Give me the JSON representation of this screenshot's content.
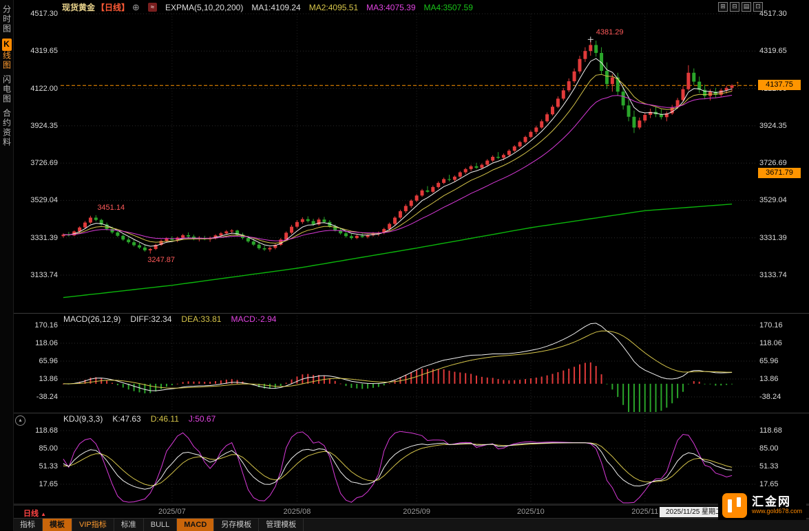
{
  "header": {
    "symbol": "现货黄金",
    "period_tag": "【日线】",
    "add_icon": "⊕",
    "menu_icon": "≈",
    "indicator": "EXPMA(5,10,20,200)",
    "ma1": "MA1:4109.24",
    "ma2": "MA2:4095.51",
    "ma3": "MA3:4075.39",
    "ma4": "MA4:3507.59"
  },
  "window_icons": [
    {
      "name": "multi-chart-layout-icon",
      "glyph": "⊞"
    },
    {
      "name": "split-horizontal-icon",
      "glyph": "⊟"
    },
    {
      "name": "list-view-icon",
      "glyph": "▤"
    },
    {
      "name": "new-window-icon",
      "glyph": "⊡"
    }
  ],
  "sidebar": {
    "items": [
      {
        "label": "分时图",
        "active": false
      },
      {
        "label": "K线图",
        "active": true
      },
      {
        "label": "闪电图",
        "active": false
      },
      {
        "label": "合约资料",
        "active": false
      }
    ]
  },
  "macd_header": {
    "title": "MACD(26,12,9)",
    "diff": "DIFF:32.34",
    "dea": "DEA:33.81",
    "macd": "MACD:-2.94"
  },
  "kdj_header": {
    "title": "KDJ(9,3,3)",
    "k": "K:47.63",
    "d": "D:46.11",
    "j": "J:50.67"
  },
  "timeline": {
    "period": "日线",
    "period_arrow": "▲",
    "date_box": "2025/11/25 星期二"
  },
  "tabs": [
    {
      "label": "指标",
      "style": "plain"
    },
    {
      "label": "模板",
      "style": "hl"
    },
    {
      "label": "VIP指标",
      "style": "orange"
    },
    {
      "label": "标准",
      "style": "plain"
    },
    {
      "label": "BULL",
      "style": "plain"
    },
    {
      "label": "MACD",
      "style": "hl"
    },
    {
      "label": "另存模板",
      "style": "plain"
    },
    {
      "label": "管理模板",
      "style": "plain"
    }
  ],
  "logo": {
    "name": "汇金网",
    "url": "www.gold678.com"
  },
  "icons": {
    "collapse": "▴",
    "price_arrow": "↑"
  },
  "chart_data": {
    "type": "candlestick",
    "title": "现货黄金 日线",
    "y_ticks": [
      4517.3,
      4319.65,
      4122.0,
      3924.35,
      3726.69,
      3529.04,
      3331.39,
      3133.74
    ],
    "x_labels": [
      {
        "label": "2025/07",
        "index": 20
      },
      {
        "label": "2025/08",
        "index": 43
      },
      {
        "label": "2025/09",
        "index": 65
      },
      {
        "label": "2025/10",
        "index": 86
      },
      {
        "label": "2025/11",
        "index": 107
      }
    ],
    "last_price": 4137.75,
    "ref_price": 3671.79,
    "peak_label": {
      "value": 4381.29,
      "index": 97
    },
    "swing_high": {
      "value": 3451.14,
      "index": 6
    },
    "swing_low": {
      "value": 3247.87,
      "index": 16
    },
    "ema_periods": [
      5,
      10,
      20
    ],
    "ema200_waypoints": [
      [
        0,
        3015
      ],
      [
        20,
        3080
      ],
      [
        43,
        3170
      ],
      [
        65,
        3277
      ],
      [
        86,
        3385
      ],
      [
        107,
        3475
      ],
      [
        122,
        3507.59
      ]
    ],
    "macd_panel": {
      "params": [
        26,
        12,
        9
      ],
      "ticks": [
        170.16,
        118.06,
        65.96,
        13.86,
        -38.24
      ],
      "last": {
        "diff": 32.34,
        "dea": 33.81,
        "macd": -2.94
      }
    },
    "kdj_panel": {
      "params": [
        9,
        3,
        3
      ],
      "ticks": [
        118.68,
        85.0,
        51.33,
        17.65
      ],
      "last": {
        "k": 47.63,
        "d": 46.11,
        "j": 50.67
      }
    },
    "colors": {
      "up": "#e13a3a",
      "down": "#2aa52a",
      "ma1": "#f2f2f2",
      "ma2": "#d6c54a",
      "ma3": "#d93ad9",
      "ma4": "#0bb50b",
      "accent": "#ff9500",
      "grid": "#2c2c2c"
    },
    "candles": [
      [
        3340,
        3355,
        3332,
        3348
      ],
      [
        3348,
        3362,
        3338,
        3344
      ],
      [
        3344,
        3370,
        3340,
        3365
      ],
      [
        3365,
        3392,
        3358,
        3386
      ],
      [
        3386,
        3420,
        3380,
        3412
      ],
      [
        3412,
        3448,
        3405,
        3438
      ],
      [
        3438,
        3451.14,
        3418,
        3426
      ],
      [
        3426,
        3432,
        3395,
        3402
      ],
      [
        3402,
        3412,
        3370,
        3378
      ],
      [
        3378,
        3390,
        3352,
        3360
      ],
      [
        3360,
        3372,
        3335,
        3342
      ],
      [
        3342,
        3350,
        3315,
        3322
      ],
      [
        3322,
        3335,
        3300,
        3308
      ],
      [
        3308,
        3320,
        3285,
        3292
      ],
      [
        3292,
        3305,
        3272,
        3280
      ],
      [
        3280,
        3295,
        3258,
        3265
      ],
      [
        3265,
        3278,
        3247.87,
        3272
      ],
      [
        3272,
        3300,
        3266,
        3294
      ],
      [
        3294,
        3322,
        3288,
        3315
      ],
      [
        3315,
        3335,
        3305,
        3328
      ],
      [
        3328,
        3340,
        3312,
        3320
      ],
      [
        3320,
        3338,
        3308,
        3332
      ],
      [
        3332,
        3352,
        3325,
        3345
      ],
      [
        3345,
        3360,
        3330,
        3338
      ],
      [
        3338,
        3348,
        3318,
        3325
      ],
      [
        3325,
        3340,
        3312,
        3330
      ],
      [
        3330,
        3342,
        3318,
        3324
      ],
      [
        3324,
        3338,
        3310,
        3331
      ],
      [
        3331,
        3350,
        3322,
        3344
      ],
      [
        3344,
        3362,
        3336,
        3355
      ],
      [
        3355,
        3372,
        3348,
        3365
      ],
      [
        3365,
        3377,
        3352,
        3370
      ],
      [
        3370,
        3374,
        3340,
        3348
      ],
      [
        3348,
        3358,
        3322,
        3330
      ],
      [
        3330,
        3342,
        3305,
        3312
      ],
      [
        3312,
        3325,
        3288,
        3295
      ],
      [
        3295,
        3310,
        3268,
        3276
      ],
      [
        3276,
        3290,
        3262,
        3270
      ],
      [
        3270,
        3285,
        3258,
        3278
      ],
      [
        3278,
        3300,
        3270,
        3294
      ],
      [
        3294,
        3330,
        3288,
        3322
      ],
      [
        3322,
        3365,
        3315,
        3358
      ],
      [
        3358,
        3400,
        3350,
        3390
      ],
      [
        3390,
        3425,
        3382,
        3415
      ],
      [
        3415,
        3440,
        3405,
        3430
      ],
      [
        3430,
        3445,
        3412,
        3420
      ],
      [
        3420,
        3432,
        3395,
        3402
      ],
      [
        3402,
        3438,
        3396,
        3428
      ],
      [
        3428,
        3442,
        3408,
        3415
      ],
      [
        3415,
        3425,
        3385,
        3392
      ],
      [
        3392,
        3402,
        3365,
        3372
      ],
      [
        3372,
        3385,
        3348,
        3355
      ],
      [
        3355,
        3368,
        3332,
        3340
      ],
      [
        3340,
        3352,
        3322,
        3330
      ],
      [
        3330,
        3348,
        3324,
        3342
      ],
      [
        3342,
        3355,
        3330,
        3336
      ],
      [
        3336,
        3350,
        3328,
        3345
      ],
      [
        3345,
        3362,
        3338,
        3352
      ],
      [
        3352,
        3365,
        3340,
        3358
      ],
      [
        3358,
        3385,
        3350,
        3378
      ],
      [
        3378,
        3412,
        3370,
        3405
      ],
      [
        3405,
        3445,
        3398,
        3438
      ],
      [
        3438,
        3480,
        3430,
        3472
      ],
      [
        3472,
        3510,
        3462,
        3500
      ],
      [
        3500,
        3535,
        3490,
        3528
      ],
      [
        3528,
        3562,
        3520,
        3555
      ],
      [
        3555,
        3590,
        3548,
        3582
      ],
      [
        3582,
        3605,
        3570,
        3575
      ],
      [
        3575,
        3608,
        3568,
        3600
      ],
      [
        3600,
        3630,
        3592,
        3622
      ],
      [
        3622,
        3650,
        3615,
        3642
      ],
      [
        3642,
        3665,
        3630,
        3638
      ],
      [
        3638,
        3662,
        3628,
        3655
      ],
      [
        3655,
        3685,
        3648,
        3678
      ],
      [
        3678,
        3702,
        3668,
        3695
      ],
      [
        3695,
        3718,
        3685,
        3710
      ],
      [
        3710,
        3728,
        3695,
        3702
      ],
      [
        3702,
        3725,
        3692,
        3718
      ],
      [
        3718,
        3748,
        3710,
        3740
      ],
      [
        3740,
        3768,
        3732,
        3760
      ],
      [
        3760,
        3785,
        3748,
        3755
      ],
      [
        3755,
        3778,
        3742,
        3770
      ],
      [
        3770,
        3800,
        3762,
        3792
      ],
      [
        3792,
        3822,
        3785,
        3815
      ],
      [
        3815,
        3845,
        3808,
        3838
      ],
      [
        3838,
        3872,
        3830,
        3865
      ],
      [
        3865,
        3900,
        3858,
        3892
      ],
      [
        3892,
        3925,
        3880,
        3915
      ],
      [
        3915,
        3958,
        3908,
        3948
      ],
      [
        3948,
        3995,
        3940,
        3985
      ],
      [
        3985,
        4035,
        3978,
        4025
      ],
      [
        4025,
        4080,
        4018,
        4068
      ],
      [
        4068,
        4125,
        4058,
        4112
      ],
      [
        4112,
        4175,
        4102,
        4160
      ],
      [
        4160,
        4228,
        4150,
        4212
      ],
      [
        4212,
        4295,
        4200,
        4278
      ],
      [
        4278,
        4340,
        4262,
        4320
      ],
      [
        4320,
        4381.29,
        4295,
        4352
      ],
      [
        4352,
        4375,
        4290,
        4310
      ],
      [
        4310,
        4340,
        4195,
        4215
      ],
      [
        4215,
        4260,
        4120,
        4145
      ],
      [
        4145,
        4198,
        4105,
        4180
      ],
      [
        4180,
        4205,
        4085,
        4105
      ],
      [
        4105,
        4130,
        4010,
        4032
      ],
      [
        4032,
        4068,
        3948,
        3972
      ],
      [
        3972,
        4005,
        3886,
        3915
      ],
      [
        3915,
        3968,
        3905,
        3952
      ],
      [
        3952,
        3995,
        3940,
        3982
      ],
      [
        3982,
        4015,
        3965,
        3998
      ],
      [
        3998,
        4025,
        3970,
        3985
      ],
      [
        3985,
        4012,
        3958,
        3970
      ],
      [
        3970,
        4000,
        3948,
        3990
      ],
      [
        3990,
        4035,
        3982,
        4022
      ],
      [
        4022,
        4072,
        4015,
        4060
      ],
      [
        4060,
        4135,
        4052,
        4118
      ],
      [
        4118,
        4245,
        4110,
        4205
      ],
      [
        4205,
        4228,
        4140,
        4158
      ],
      [
        4158,
        4185,
        4098,
        4115
      ],
      [
        4115,
        4142,
        4065,
        4082
      ],
      [
        4082,
        4118,
        4058,
        4105
      ],
      [
        4105,
        4125,
        4072,
        4088
      ],
      [
        4088,
        4122,
        4078,
        4112
      ],
      [
        4112,
        4138,
        4095,
        4125
      ],
      [
        4125,
        4145,
        4108,
        4137.75
      ]
    ]
  }
}
